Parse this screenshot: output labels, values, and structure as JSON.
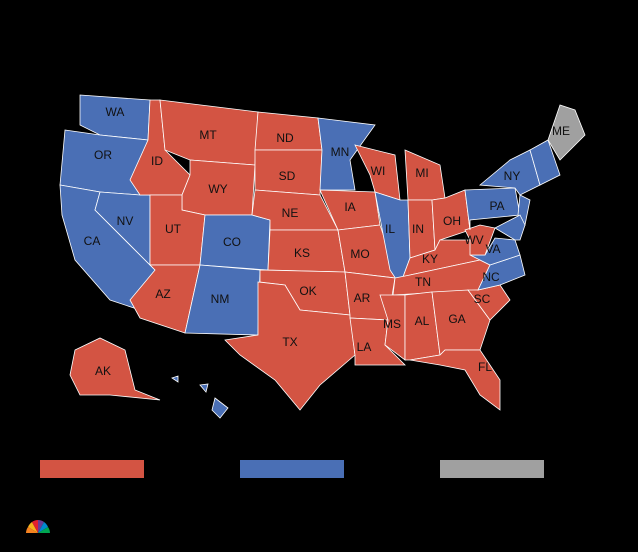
{
  "map": {
    "stroke": "#ffffff",
    "states": [
      {
        "label": "WA",
        "color": "#4a6fb5"
      },
      {
        "label": "OR",
        "color": "#4a6fb5"
      },
      {
        "label": "CA",
        "color": "#4a6fb5"
      },
      {
        "label": "NV",
        "color": "#4a6fb5"
      },
      {
        "label": "ID",
        "color": "#d35443"
      },
      {
        "label": "MT",
        "color": "#d35443"
      },
      {
        "label": "WY",
        "color": "#d35443"
      },
      {
        "label": "UT",
        "color": "#d35443"
      },
      {
        "label": "CO",
        "color": "#4a6fb5"
      },
      {
        "label": "AZ",
        "color": "#d35443"
      },
      {
        "label": "NM",
        "color": "#4a6fb5"
      },
      {
        "label": "ND",
        "color": "#d35443"
      },
      {
        "label": "SD",
        "color": "#d35443"
      },
      {
        "label": "NE",
        "color": "#d35443"
      },
      {
        "label": "KS",
        "color": "#d35443"
      },
      {
        "label": "OK",
        "color": "#d35443"
      },
      {
        "label": "TX",
        "color": "#d35443"
      },
      {
        "label": "MN",
        "color": "#4a6fb5"
      },
      {
        "label": "IA",
        "color": "#d35443"
      },
      {
        "label": "MO",
        "color": "#d35443"
      },
      {
        "label": "AR",
        "color": "#d35443"
      },
      {
        "label": "LA",
        "color": "#d35443"
      },
      {
        "label": "WI",
        "color": "#d35443"
      },
      {
        "label": "IL",
        "color": "#4a6fb5"
      },
      {
        "label": "MI",
        "color": "#d35443"
      },
      {
        "label": "IN",
        "color": "#d35443"
      },
      {
        "label": "OH",
        "color": "#d35443"
      },
      {
        "label": "KY",
        "color": "#d35443"
      },
      {
        "label": "TN",
        "color": "#d35443"
      },
      {
        "label": "MS",
        "color": "#d35443"
      },
      {
        "label": "AL",
        "color": "#d35443"
      },
      {
        "label": "GA",
        "color": "#d35443"
      },
      {
        "label": "FL",
        "color": "#d35443"
      },
      {
        "label": "SC",
        "color": "#d35443"
      },
      {
        "label": "NC",
        "color": "#4a6fb5"
      },
      {
        "label": "VA",
        "color": "#4a6fb5"
      },
      {
        "label": "WV",
        "color": "#d35443"
      },
      {
        "label": "PA",
        "color": "#4a6fb5"
      },
      {
        "label": "NY",
        "color": "#4a6fb5"
      },
      {
        "label": null,
        "color": "#4a6fb5"
      },
      {
        "label": null,
        "color": "#4a6fb5"
      },
      {
        "label": null,
        "color": "#4a6fb5"
      },
      {
        "label": "ME",
        "color": "#a0a0a0"
      },
      {
        "label": "AK",
        "color": "#d35443"
      },
      {
        "label": null,
        "color": "#4a6fb5"
      }
    ],
    "legend_colors": [
      "#d35443",
      "#4a6fb5",
      "#a0a0a0"
    ]
  }
}
